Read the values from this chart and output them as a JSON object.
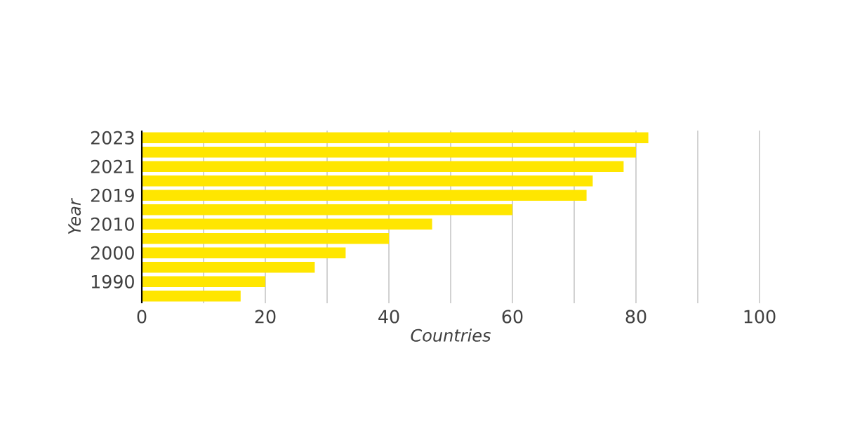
{
  "chart_data": {
    "type": "bar",
    "orientation": "horizontal",
    "xlabel": "Countries",
    "ylabel": "Year",
    "categories": [
      "2023",
      null,
      "2021",
      null,
      "2019",
      null,
      "2010",
      null,
      "2000",
      null,
      "1990",
      null
    ],
    "values": [
      82,
      80,
      78,
      73,
      72,
      60,
      47,
      40,
      33,
      28,
      20,
      16
    ],
    "color": "#ffe600",
    "xlim": [
      0,
      100
    ],
    "xticks": [
      0,
      {
        "value": 10,
        "label": null
      },
      20,
      {
        "value": 30,
        "label": null
      },
      40,
      {
        "value": 50,
        "label": null
      },
      60,
      {
        "value": 70,
        "label": null
      },
      80,
      {
        "value": 90,
        "label": null
      },
      100
    ],
    "grid": "x"
  }
}
